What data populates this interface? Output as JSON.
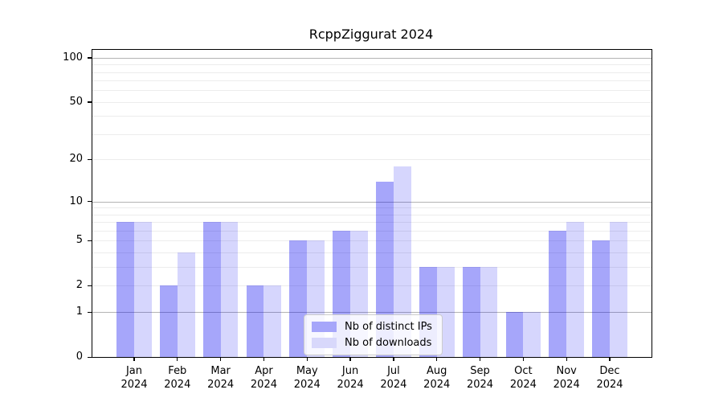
{
  "chart_data": {
    "type": "bar",
    "title": "RcppZiggurat 2024",
    "categories": [
      "Jan",
      "Feb",
      "Mar",
      "Apr",
      "May",
      "Jun",
      "Jul",
      "Aug",
      "Sep",
      "Oct",
      "Nov",
      "Dec"
    ],
    "year_label": "2024",
    "series": [
      {
        "name": "Nb of distinct IPs",
        "color": "rgba(0,0,240,0.35)",
        "color_hex": "#a6a6fa",
        "values": [
          7,
          2,
          7,
          2,
          5,
          6,
          14,
          3,
          3,
          1,
          6,
          5
        ]
      },
      {
        "name": "Nb of downloads",
        "color": "rgba(0,0,240,0.16)",
        "color_hex": "#d8d8fb",
        "values": [
          7,
          4,
          7,
          2,
          5,
          6,
          18,
          3,
          3,
          1,
          7,
          7
        ]
      }
    ],
    "xlabel": "",
    "ylabel": "",
    "yscale": "log1p",
    "ylim": [
      0,
      113
    ],
    "yticks": [
      0,
      1,
      2,
      5,
      10,
      20,
      50,
      100
    ],
    "gridlines": {
      "major": [
        1,
        10,
        100
      ],
      "minor": [
        2,
        3,
        4,
        5,
        6,
        7,
        8,
        9,
        20,
        30,
        40,
        50,
        60,
        70,
        80,
        90
      ]
    },
    "legend_position": "lower center",
    "grid": true
  }
}
